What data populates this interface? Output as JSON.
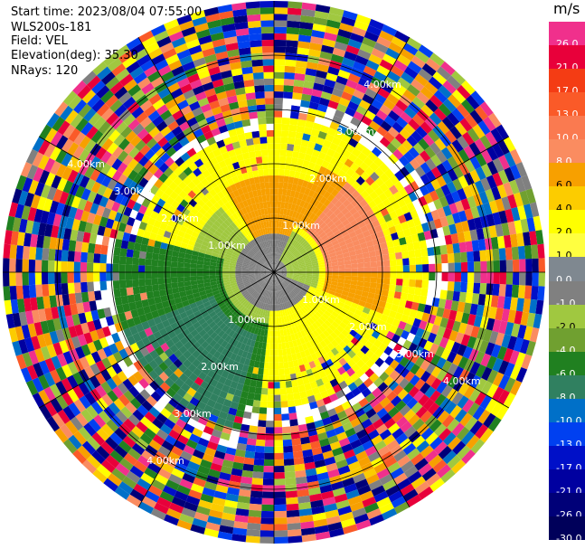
{
  "header": {
    "start_time": "Start time: 2023/08/04 07:55:00",
    "instrument": "WLS200s-181",
    "field": "Field: VEL",
    "elevation": "Elevation(deg): 35.30",
    "nrays": "NRays: 120"
  },
  "colorbar": {
    "unit": "m/s",
    "levels": [
      {
        "label": "26.0",
        "color": "#f0308c"
      },
      {
        "label": "21.0",
        "color": "#e8003a"
      },
      {
        "label": "17.0",
        "color": "#f43c14"
      },
      {
        "label": "13.0",
        "color": "#fa5a28"
      },
      {
        "label": "10.0",
        "color": "#fa7a50"
      },
      {
        "label": "8.0",
        "color": "#fa8c60"
      },
      {
        "label": "6.0",
        "color": "#f7a000"
      },
      {
        "label": "4.0",
        "color": "#fccc00"
      },
      {
        "label": "2.0",
        "color": "#ffff00"
      },
      {
        "label": "1.0",
        "color": "#ffff40"
      },
      {
        "label": "0.0",
        "color": "#7f8890"
      },
      {
        "label": "-1.0",
        "color": "#808080"
      },
      {
        "label": "-2.0",
        "color": "#a0c840"
      },
      {
        "label": "-4.0",
        "color": "#70a030"
      },
      {
        "label": "-6.0",
        "color": "#208020"
      },
      {
        "label": "-8.0",
        "color": "#308060"
      },
      {
        "label": "-10.0",
        "color": "#0070c8"
      },
      {
        "label": "-13.0",
        "color": "#0040f0"
      },
      {
        "label": "-17.0",
        "color": "#0010c8"
      },
      {
        "label": "-21.0",
        "color": "#0000a0"
      },
      {
        "label": "-26.0",
        "color": "#000078"
      },
      {
        "label": "-30.0",
        "color": "#00005a"
      }
    ]
  },
  "chart_data": {
    "type": "heatmap",
    "field": "VEL",
    "nrays": 120,
    "elevation_deg": 35.3,
    "range_rings": [
      {
        "label": "1.00km"
      },
      {
        "label": "2.00km"
      },
      {
        "label": "3.00km"
      },
      {
        "label": "4.00km"
      }
    ],
    "sectors": [
      {
        "azimuth_range": [
          20,
          110
        ],
        "dominant_velocity": "6.0 to 10.0",
        "note": "orange/salmon near range"
      },
      {
        "azimuth_range": [
          290,
          20
        ],
        "dominant_velocity": "2.0 to 4.0",
        "note": "yellow"
      },
      {
        "azimuth_range": [
          180,
          290
        ],
        "dominant_velocity": "-2.0 to -8.0",
        "note": "green"
      },
      {
        "azimuth_range": [
          110,
          180
        ],
        "dominant_velocity": "1.0 to 2.0",
        "note": "yellow"
      }
    ]
  }
}
